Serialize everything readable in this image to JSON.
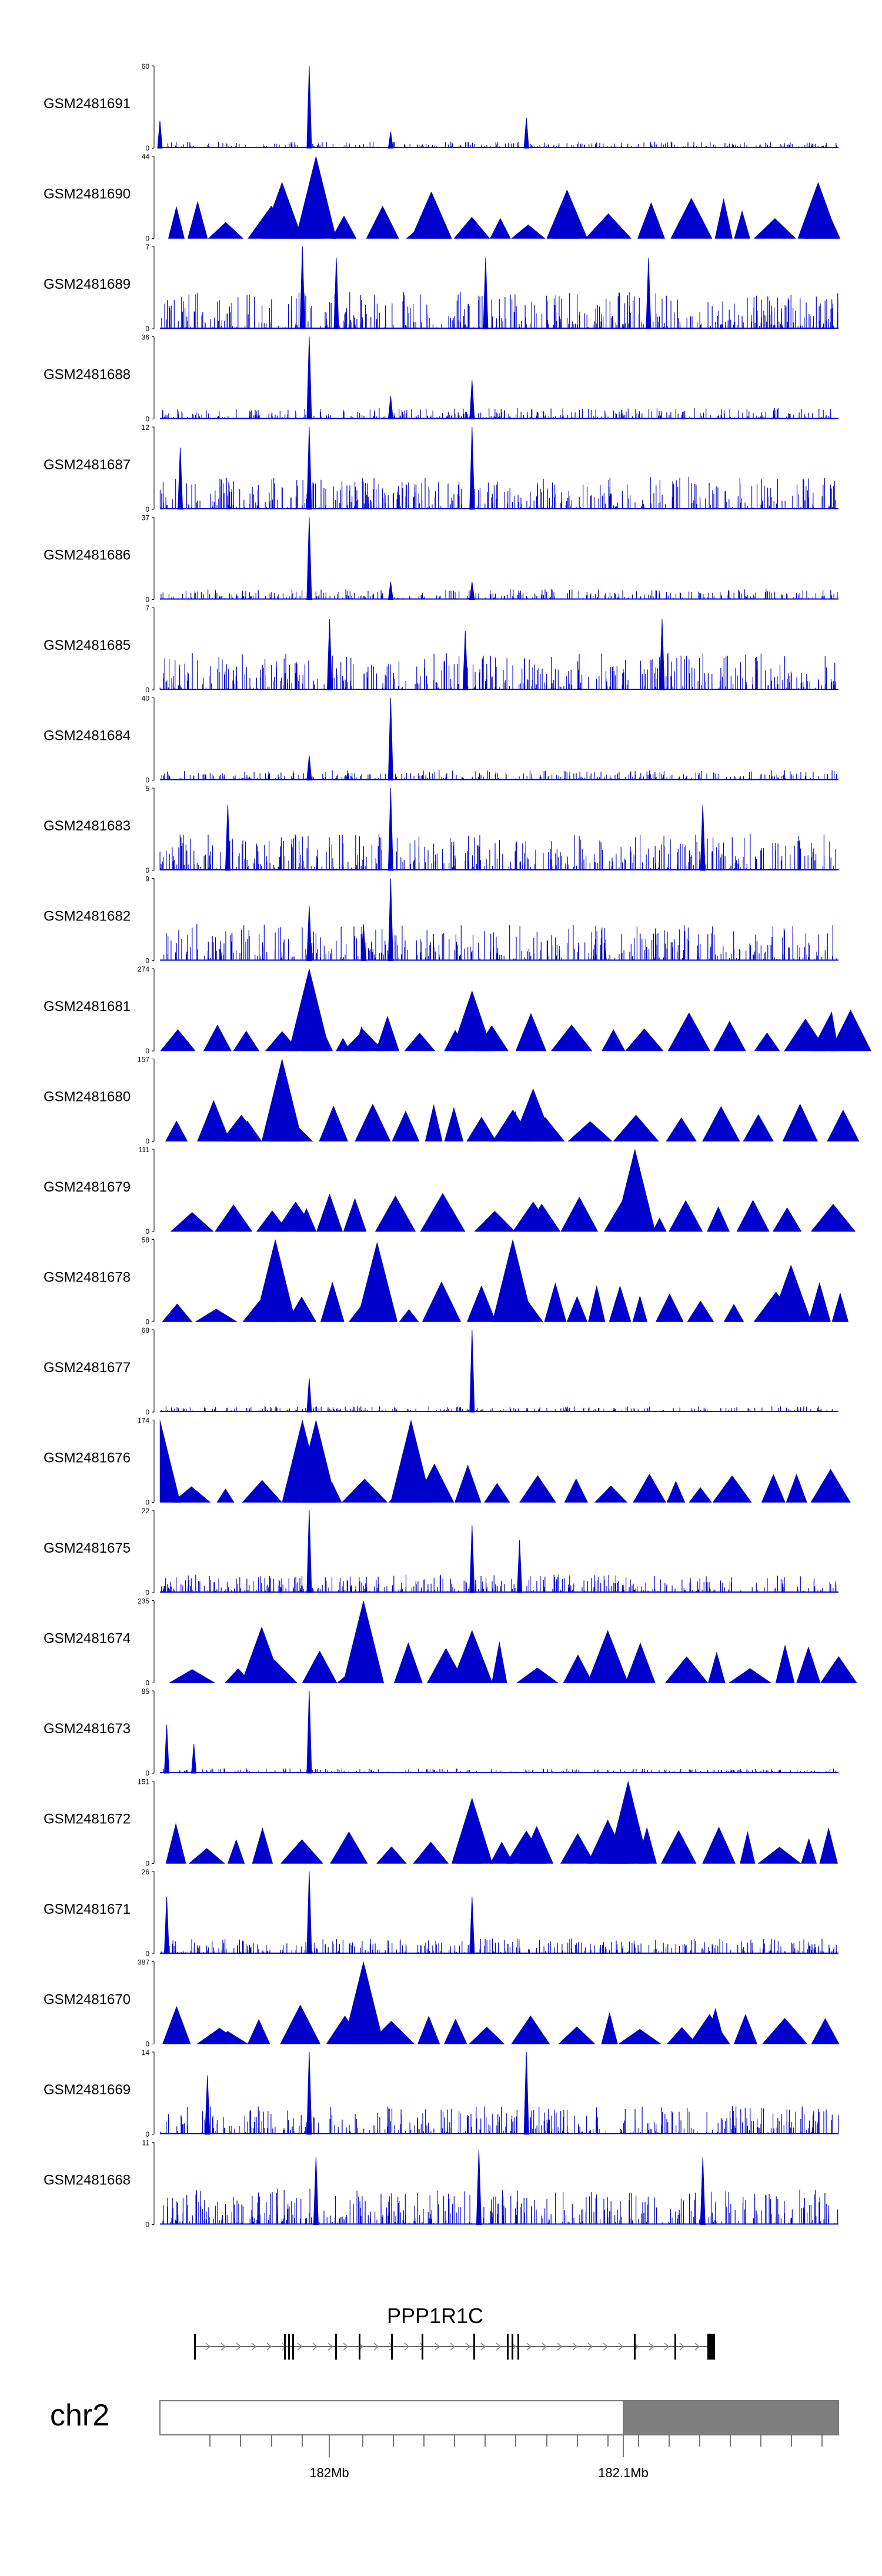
{
  "chart_data": {
    "type": "area",
    "title": "",
    "xlabel": "",
    "ylabel": "",
    "x_axis": {
      "chromosome": "chr2",
      "tick_labels": [
        "182Mb",
        "182.1Mb"
      ]
    },
    "gene": {
      "name": "PPP1R1C"
    },
    "series": [
      {
        "name": "GSM2481691",
        "ymax": 60,
        "ymin": 0,
        "style": "dense",
        "peaks": [
          [
            0.22,
            60
          ],
          [
            0.34,
            12
          ],
          [
            0.54,
            22
          ],
          [
            0.0,
            20
          ]
        ]
      },
      {
        "name": "GSM2481690",
        "ymax": 44,
        "ymin": 0,
        "style": "triangles",
        "peaks": [
          [
            0.23,
            44
          ],
          [
            0.18,
            30
          ],
          [
            0.4,
            25
          ],
          [
            0.6,
            26
          ],
          [
            0.97,
            30
          ]
        ]
      },
      {
        "name": "GSM2481689",
        "ymax": 7,
        "ymin": 0,
        "style": "dense",
        "peaks": [
          [
            0.21,
            7
          ],
          [
            0.26,
            6
          ],
          [
            0.48,
            6
          ],
          [
            0.72,
            6
          ]
        ]
      },
      {
        "name": "GSM2481688",
        "ymax": 36,
        "ymin": 0,
        "style": "dense",
        "peaks": [
          [
            0.22,
            36
          ],
          [
            0.34,
            10
          ],
          [
            0.46,
            17
          ]
        ]
      },
      {
        "name": "GSM2481687",
        "ymax": 12,
        "ymin": 0,
        "style": "dense",
        "peaks": [
          [
            0.22,
            12
          ],
          [
            0.46,
            12
          ],
          [
            0.03,
            9
          ]
        ]
      },
      {
        "name": "GSM2481686",
        "ymax": 37,
        "ymin": 0,
        "style": "dense",
        "peaks": [
          [
            0.22,
            37
          ],
          [
            0.34,
            8
          ],
          [
            0.46,
            8
          ]
        ]
      },
      {
        "name": "GSM2481685",
        "ymax": 7,
        "ymin": 0,
        "style": "dense",
        "peaks": [
          [
            0.25,
            6
          ],
          [
            0.74,
            6
          ],
          [
            0.45,
            5
          ]
        ]
      },
      {
        "name": "GSM2481684",
        "ymax": 40,
        "ymin": 0,
        "style": "dense",
        "peaks": [
          [
            0.34,
            40
          ],
          [
            0.22,
            12
          ]
        ]
      },
      {
        "name": "GSM2481683",
        "ymax": 5,
        "ymin": 0,
        "style": "dense",
        "peaks": [
          [
            0.34,
            5
          ],
          [
            0.8,
            4
          ],
          [
            0.1,
            4
          ]
        ]
      },
      {
        "name": "GSM2481682",
        "ymax": 9,
        "ymin": 0,
        "style": "dense",
        "peaks": [
          [
            0.34,
            9
          ],
          [
            0.22,
            6
          ],
          [
            0.3,
            4
          ]
        ]
      },
      {
        "name": "GSM2481681",
        "ymax": 274,
        "ymin": 0,
        "style": "triangles",
        "peaks": [
          [
            0.22,
            274
          ],
          [
            0.46,
            200
          ],
          [
            0.3,
            70
          ],
          [
            0.99,
            130
          ]
        ]
      },
      {
        "name": "GSM2481680",
        "ymax": 157,
        "ymin": 0,
        "style": "triangles",
        "peaks": [
          [
            0.18,
            157
          ],
          [
            0.55,
            100
          ],
          [
            0.12,
            50
          ],
          [
            0.52,
            60
          ]
        ]
      },
      {
        "name": "GSM2481679",
        "ymax": 111,
        "ymin": 0,
        "style": "triangles",
        "peaks": [
          [
            0.7,
            111
          ],
          [
            0.2,
            40
          ],
          [
            0.55,
            40
          ]
        ]
      },
      {
        "name": "GSM2481678",
        "ymax": 58,
        "ymin": 0,
        "style": "triangles",
        "peaks": [
          [
            0.17,
            58
          ],
          [
            0.32,
            56
          ],
          [
            0.52,
            58
          ],
          [
            0.93,
            40
          ]
        ]
      },
      {
        "name": "GSM2481677",
        "ymax": 68,
        "ymin": 0,
        "style": "dense",
        "peaks": [
          [
            0.46,
            68
          ],
          [
            0.22,
            28
          ]
        ]
      },
      {
        "name": "GSM2481676",
        "ymax": 174,
        "ymin": 0,
        "style": "triangles",
        "peaks": [
          [
            0.0,
            174
          ],
          [
            0.21,
            174
          ],
          [
            0.23,
            174
          ],
          [
            0.37,
            174
          ]
        ]
      },
      {
        "name": "GSM2481675",
        "ymax": 22,
        "ymin": 0,
        "style": "dense",
        "peaks": [
          [
            0.22,
            22
          ],
          [
            0.46,
            18
          ],
          [
            0.53,
            14
          ]
        ]
      },
      {
        "name": "GSM2481674",
        "ymax": 235,
        "ymin": 0,
        "style": "triangles",
        "peaks": [
          [
            0.15,
            160
          ],
          [
            0.3,
            235
          ],
          [
            0.46,
            150
          ],
          [
            0.66,
            150
          ]
        ]
      },
      {
        "name": "GSM2481673",
        "ymax": 85,
        "ymin": 0,
        "style": "dense",
        "peaks": [
          [
            0.22,
            85
          ],
          [
            0.01,
            50
          ],
          [
            0.05,
            30
          ]
        ]
      },
      {
        "name": "GSM2481672",
        "ymax": 151,
        "ymin": 0,
        "style": "triangles",
        "peaks": [
          [
            0.69,
            151
          ],
          [
            0.46,
            120
          ],
          [
            0.66,
            80
          ],
          [
            0.54,
            60
          ]
        ]
      },
      {
        "name": "GSM2481671",
        "ymax": 26,
        "ymin": 0,
        "style": "dense",
        "peaks": [
          [
            0.22,
            26
          ],
          [
            0.46,
            18
          ],
          [
            0.01,
            18
          ]
        ]
      },
      {
        "name": "GSM2481670",
        "ymax": 387,
        "ymin": 0,
        "style": "triangles",
        "peaks": [
          [
            0.3,
            387
          ],
          [
            0.81,
            140
          ],
          [
            0.1,
            60
          ]
        ]
      },
      {
        "name": "GSM2481669",
        "ymax": 14,
        "ymin": 0,
        "style": "dense",
        "peaks": [
          [
            0.22,
            14
          ],
          [
            0.54,
            14
          ],
          [
            0.07,
            10
          ]
        ]
      },
      {
        "name": "GSM2481668",
        "ymax": 11,
        "ymin": 0,
        "style": "dense",
        "peaks": [
          [
            0.47,
            10
          ],
          [
            0.23,
            9
          ],
          [
            0.8,
            9
          ]
        ]
      }
    ]
  }
}
